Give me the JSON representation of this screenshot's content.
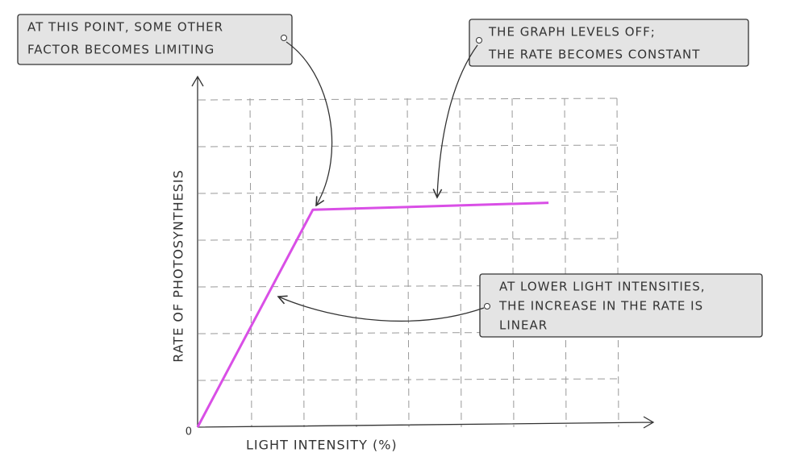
{
  "chart_data": {
    "type": "line",
    "x_label": "LIGHT INTENSITY (%)",
    "y_label": "RATE OF PHOTOSYNTHESIS",
    "x": [
      0,
      2.2,
      6.7
    ],
    "series": [
      {
        "color": "#d94fe6",
        "values": [
          0,
          4.65,
          4.8
        ]
      }
    ],
    "xlim": [
      0,
      8.7
    ],
    "ylim": [
      0,
      7.5
    ],
    "yticks": [
      0
    ],
    "grid": true,
    "annotations": [
      {
        "lines": [
          "AT THIS POINT, SOME OTHER",
          "FACTOR BECOMES LIMITING"
        ]
      },
      {
        "lines": [
          "THE GRAPH LEVELS OFF;",
          "THE RATE BECOMES CONSTANT"
        ]
      },
      {
        "lines": [
          "AT LOWER LIGHT INTENSITIES,",
          "THE INCREASE IN THE RATE IS",
          "LINEAR"
        ]
      }
    ]
  }
}
